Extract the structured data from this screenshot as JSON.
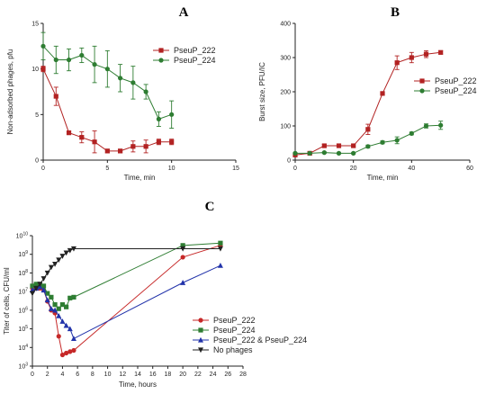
{
  "chart_data": [
    {
      "panel": "A",
      "type": "line",
      "title": "",
      "xlabel": "Time, min",
      "ylabel": "Non-adsorbed phages, pfu",
      "xlim": [
        0,
        15
      ],
      "ylim": [
        0,
        15
      ],
      "xticks": [
        0,
        5,
        10,
        15
      ],
      "yticks": [
        0,
        5,
        10,
        15
      ],
      "legend_position": "upper-right",
      "series": [
        {
          "name": "PseuP_222",
          "color": "#b22222",
          "marker": "square",
          "x": [
            0,
            1,
            2,
            3,
            4,
            5,
            6,
            7,
            8,
            9,
            10
          ],
          "y": [
            10,
            7,
            3,
            2.5,
            2,
            1,
            1,
            1.5,
            1.5,
            2,
            2
          ],
          "err": [
            0.3,
            1.0,
            0.2,
            0.6,
            1.2,
            0.2,
            0.2,
            0.6,
            0.7,
            0.3,
            0.3
          ]
        },
        {
          "name": "PseuP_224",
          "color": "#2e7d32",
          "marker": "circle",
          "x": [
            0,
            1,
            2,
            3,
            4,
            5,
            6,
            7,
            8,
            9,
            10
          ],
          "y": [
            12.5,
            11,
            11,
            11.5,
            10.5,
            10,
            9,
            8.5,
            7.5,
            4.5,
            5
          ],
          "err": [
            1.5,
            1.5,
            1.2,
            0.8,
            2.0,
            2.0,
            1.5,
            1.8,
            0.8,
            0.8,
            1.5
          ]
        }
      ]
    },
    {
      "panel": "B",
      "type": "line",
      "title": "",
      "xlabel": "Time, min",
      "ylabel": "Burst size, PFU/IC",
      "xlim": [
        0,
        60
      ],
      "ylim": [
        0,
        400
      ],
      "xticks": [
        0,
        20,
        40,
        60
      ],
      "yticks": [
        0,
        100,
        200,
        300,
        400
      ],
      "legend_position": "right",
      "series": [
        {
          "name": "PseuP_222",
          "color": "#b22222",
          "marker": "square",
          "x": [
            0,
            5,
            10,
            15,
            20,
            25,
            30,
            35,
            40,
            45,
            50
          ],
          "y": [
            15,
            20,
            42,
            42,
            42,
            90,
            195,
            285,
            300,
            310,
            315
          ],
          "err": [
            2,
            3,
            4,
            3,
            3,
            15,
            5,
            20,
            15,
            10,
            5
          ]
        },
        {
          "name": "PseuP_224",
          "color": "#2e7d32",
          "marker": "circle",
          "x": [
            0,
            5,
            10,
            15,
            20,
            25,
            30,
            35,
            40,
            45,
            50
          ],
          "y": [
            20,
            20,
            22,
            20,
            20,
            40,
            52,
            58,
            78,
            100,
            102
          ],
          "err": [
            2,
            2,
            2,
            2,
            2,
            4,
            4,
            10,
            4,
            6,
            12
          ]
        }
      ]
    },
    {
      "panel": "C",
      "type": "line",
      "title": "",
      "xlabel": "Time, hours",
      "ylabel": "Titer of cells, CFU/ml",
      "xlim": [
        0,
        28
      ],
      "ylim": [
        1000,
        10000000000
      ],
      "y_scale": "log",
      "xticks": [
        0,
        2,
        4,
        6,
        8,
        10,
        12,
        14,
        16,
        18,
        20,
        22,
        24,
        26,
        28
      ],
      "yticks": [
        1000,
        10000,
        100000,
        1000000,
        10000000,
        100000000,
        1000000000,
        10000000000
      ],
      "ytick_labels": [
        {
          "base": "10",
          "exp": "3"
        },
        {
          "base": "10",
          "exp": "4"
        },
        {
          "base": "10",
          "exp": "5"
        },
        {
          "base": "10",
          "exp": "6"
        },
        {
          "base": "10",
          "exp": "7"
        },
        {
          "base": "10",
          "exp": "8"
        },
        {
          "base": "10",
          "exp": "9"
        },
        {
          "base": "10",
          "exp": "10"
        }
      ],
      "legend_position": "lower-center",
      "series": [
        {
          "name": "PseuP_222",
          "color": "#c62828",
          "marker": "circle",
          "x": [
            0,
            0.5,
            1,
            1.5,
            2,
            2.5,
            3,
            3.5,
            4,
            4.5,
            5,
            5.5,
            20,
            25
          ],
          "y": [
            15000000,
            15000000,
            15000000,
            12000000,
            3000000,
            1000000,
            700000,
            40000,
            4000,
            5000,
            6000,
            7000,
            700000000,
            3000000000
          ]
        },
        {
          "name": "PseuP_224",
          "color": "#2e7d32",
          "marker": "square",
          "x": [
            0,
            0.5,
            1,
            1.5,
            2,
            2.5,
            3,
            3.5,
            4,
            4.5,
            5,
            5.5,
            20,
            25
          ],
          "y": [
            20000000,
            25000000,
            25000000,
            20000000,
            8000000,
            5000000,
            2000000,
            1200000,
            2000000,
            1500000,
            4500000,
            5000000,
            3000000000,
            4000000000
          ]
        },
        {
          "name": "PseuP_222 & PseuP_224",
          "color": "#2233aa",
          "marker": "triangle",
          "x": [
            0,
            0.5,
            1,
            1.5,
            2,
            2.5,
            3,
            3.5,
            4,
            4.5,
            5,
            5.5,
            20,
            25
          ],
          "y": [
            12000000,
            15000000,
            18000000,
            12000000,
            3500000,
            1200000,
            1000000,
            500000,
            250000,
            150000,
            100000,
            30000,
            30000000,
            250000000
          ]
        },
        {
          "name": "No phages",
          "color": "#222222",
          "marker": "triangle-down",
          "x": [
            0,
            0.5,
            1,
            1.5,
            2,
            2.5,
            3,
            3.5,
            4,
            4.5,
            5,
            5.5,
            20,
            25
          ],
          "y": [
            8000000,
            15000000,
            25000000,
            50000000,
            100000000,
            200000000,
            300000000,
            500000000,
            800000000,
            1200000000,
            1600000000,
            2000000000,
            2000000000,
            2000000000
          ]
        }
      ]
    }
  ]
}
